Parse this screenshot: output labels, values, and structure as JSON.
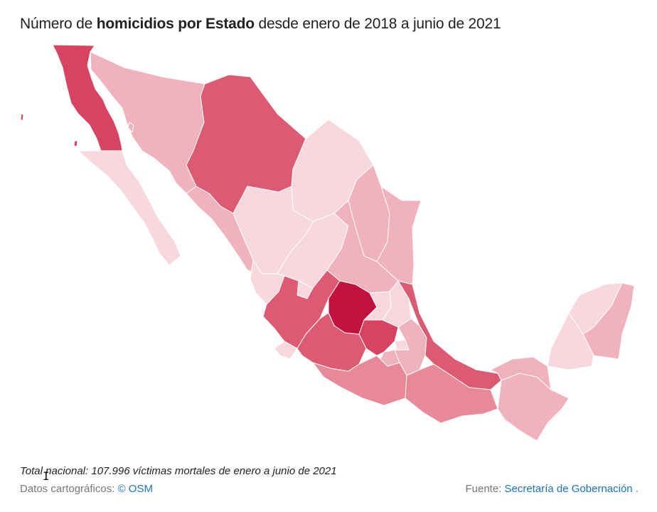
{
  "header": {
    "title_pre": "Número de ",
    "title_bold": "homicidios por Estado",
    "title_post": " desde enero de 2018 a junio de 2021"
  },
  "colors": {
    "darkest": "#c2103f",
    "dark": "#d94362",
    "medium_dark": "#dc5a72",
    "medium": "#e8899a",
    "light": "#f0b3bd",
    "lightest": "#f7d8de"
  },
  "note": "Total nacional: 107.996 víctimas mortales de enero a junio de 2021",
  "footer": {
    "map_label": "Datos cartográficos: ",
    "map_link": "© OSM",
    "source_label": "Fuente: ",
    "source_link": "Secretaría de Gobernación",
    "source_end": " ."
  }
}
